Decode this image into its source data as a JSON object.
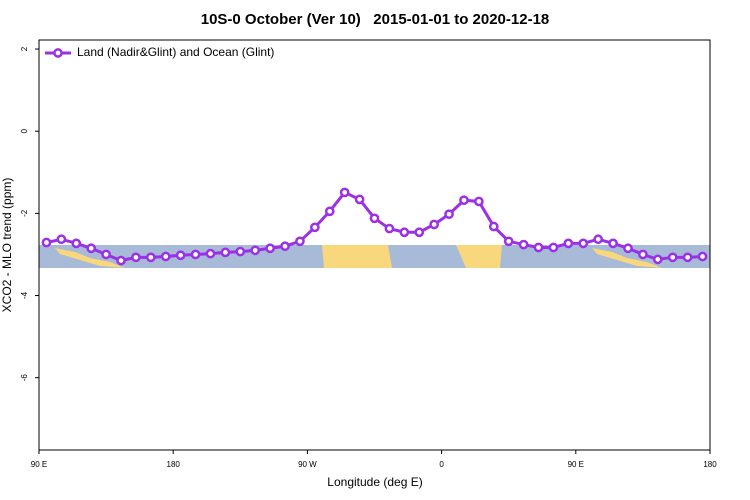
{
  "chart_data": {
    "type": "line",
    "title": "10S-0 October (Ver 10)   2015-01-01 to 2020-12-18",
    "xlabel": "Longitude (deg E)",
    "ylabel": "XCO2 - MLO trend (ppm)",
    "x": [
      95,
      105,
      115,
      125,
      135,
      145,
      155,
      165,
      175,
      185,
      195,
      205,
      215,
      225,
      235,
      245,
      255,
      265,
      275,
      285,
      295,
      305,
      315,
      325,
      335,
      345,
      355,
      365,
      375,
      385,
      395,
      405,
      415,
      425,
      435,
      445,
      455,
      465,
      475,
      485,
      495,
      505,
      515,
      525,
      535
    ],
    "series": [
      {
        "name": "Land (Nadir&Glint) and Ocean (Glint)",
        "color": "#9b30e6",
        "values": [
          -2.71,
          -2.63,
          -2.73,
          -2.85,
          -3.0,
          -3.15,
          -3.07,
          -3.07,
          -3.05,
          -3.02,
          -3.0,
          -2.98,
          -2.95,
          -2.93,
          -2.9,
          -2.85,
          -2.8,
          -2.68,
          -2.34,
          -1.95,
          -1.49,
          -1.66,
          -2.12,
          -2.37,
          -2.46,
          -2.46,
          -2.27,
          -2.02,
          -1.68,
          -1.71,
          -2.32,
          -2.68,
          -2.76,
          -2.83,
          -2.83,
          -2.73,
          -2.73,
          -2.63,
          -2.73,
          -2.85,
          -3.0,
          -3.12,
          -3.07,
          -3.07,
          -3.05
        ]
      }
    ],
    "xlim": [
      90,
      540
    ],
    "xticks": [
      {
        "value": 90,
        "label": "90 E"
      },
      180,
      {
        "value": 270,
        "label": "90 W"
      },
      {
        "value": 360,
        "label": "0"
      },
      {
        "value": 450,
        "label": "90 E"
      },
      {
        "value": 540,
        "label": "180"
      }
    ],
    "ylim": [
      -7.76,
      2.22
    ],
    "yticks": [
      2,
      0,
      -2,
      -4,
      -6
    ],
    "legend": "top-left"
  }
}
